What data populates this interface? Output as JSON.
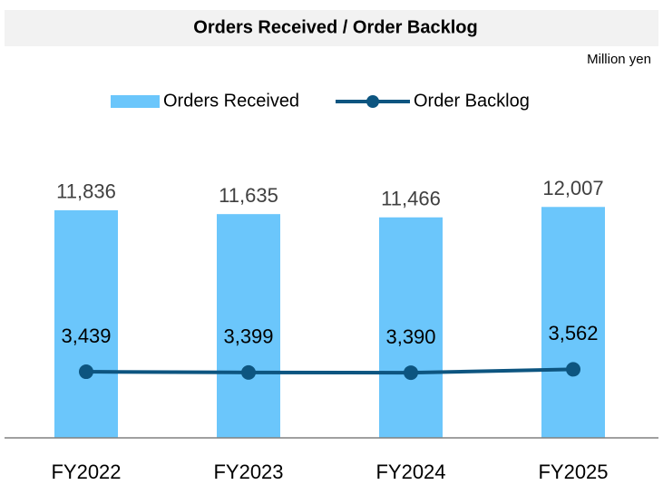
{
  "chart_data": {
    "type": "bar_line",
    "title": "Orders Received / Order Backlog",
    "unit_label": "Million yen",
    "categories": [
      "FY2022",
      "FY2023",
      "FY2024",
      "FY2025"
    ],
    "series": [
      {
        "name": "Orders Received",
        "type": "bar",
        "color": "#6bc6fb",
        "values": [
          11836,
          11635,
          11466,
          12007
        ],
        "value_labels": [
          "11,836",
          "11,635",
          "11,466",
          "12,007"
        ]
      },
      {
        "name": "Order Backlog",
        "type": "line",
        "color": "#0d5580",
        "values": [
          3439,
          3399,
          3390,
          3562
        ],
        "value_labels": [
          "3,439",
          "3,399",
          "3,390",
          "3,562"
        ]
      }
    ],
    "ylim": [
      0,
      14000
    ],
    "legend": "top"
  }
}
